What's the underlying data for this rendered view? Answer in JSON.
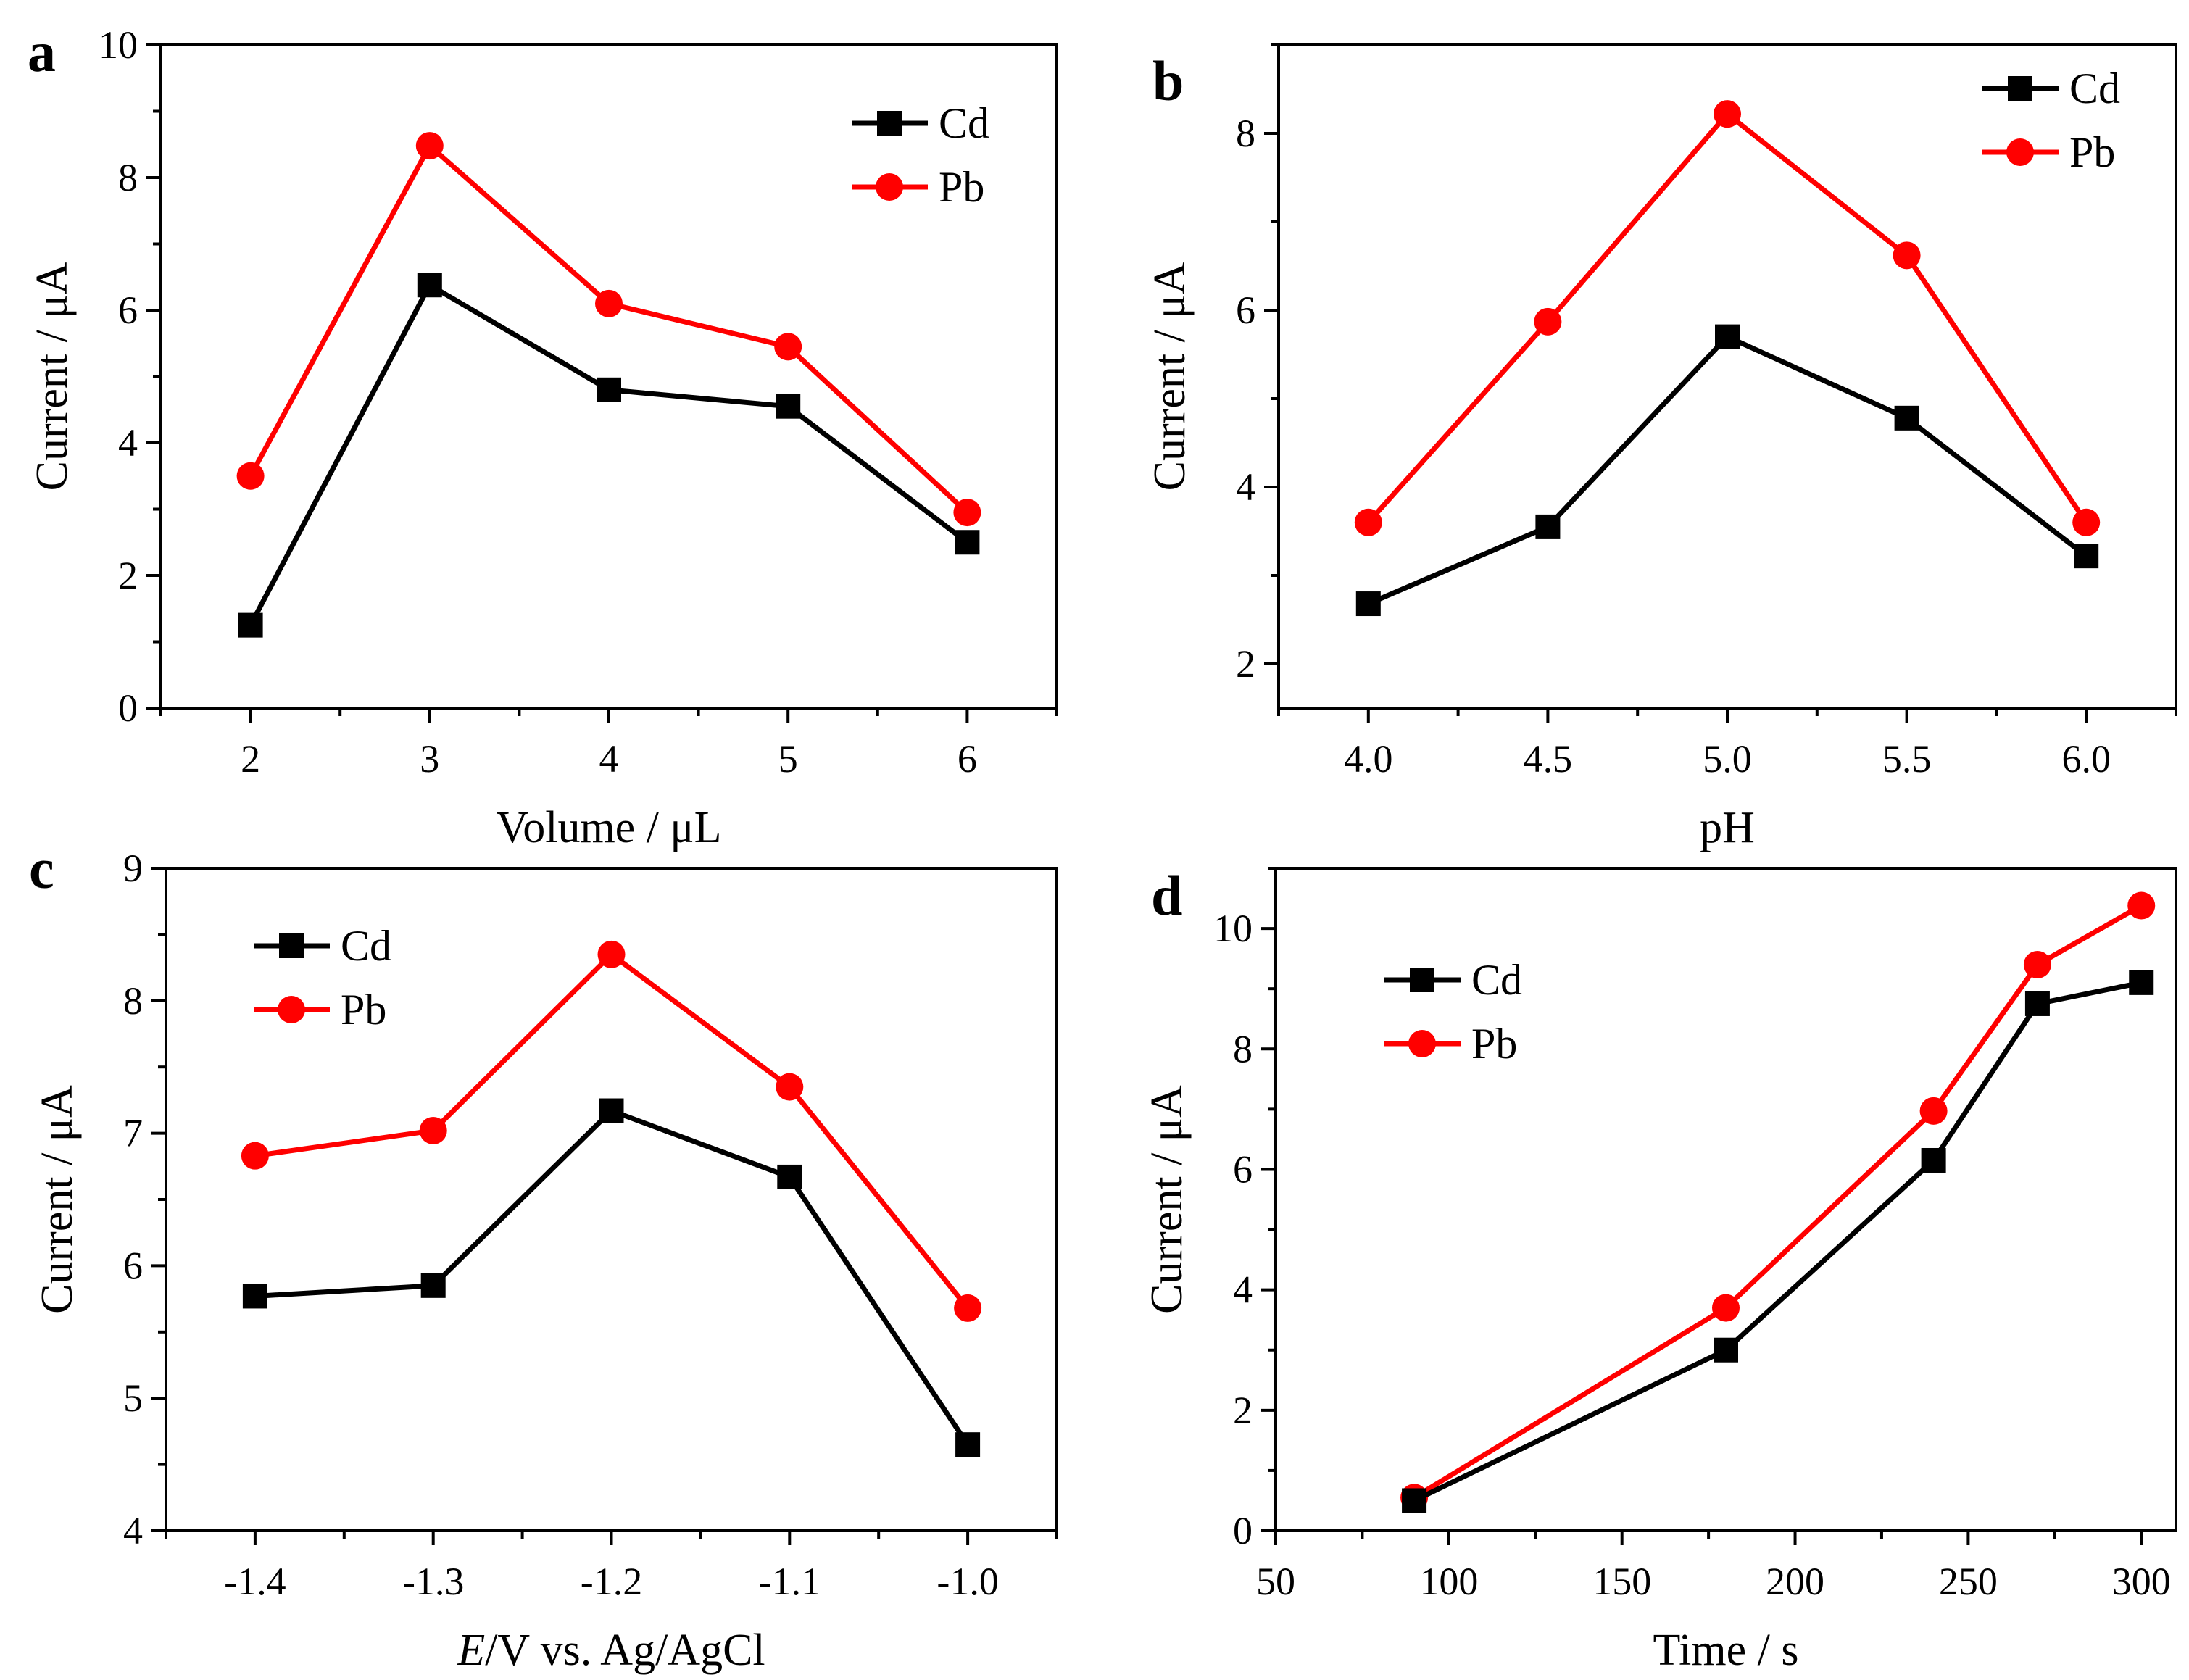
{
  "colors": {
    "cd": "#000000",
    "pb": "#ff0000",
    "axis": "#000000"
  },
  "chart_data": [
    {
      "panel": "a",
      "type": "line",
      "xlabel": "Volume / μL",
      "ylabel": "Current / μA",
      "xlim": [
        1.5,
        6.5
      ],
      "ylim": [
        0,
        10
      ],
      "xticks": [
        2,
        3,
        4,
        5,
        6
      ],
      "xtick_labels": [
        "2",
        "3",
        "4",
        "5",
        "6"
      ],
      "yticks": [
        0,
        2,
        4,
        6,
        8,
        10
      ],
      "ytick_labels": [
        "0",
        "2",
        "4",
        "6",
        "8",
        "10"
      ],
      "legend": "top-right",
      "series": [
        {
          "name": "Cd",
          "marker": "square",
          "x": [
            2,
            3,
            4,
            5,
            6
          ],
          "y": [
            1.25,
            6.38,
            4.8,
            4.55,
            2.5
          ]
        },
        {
          "name": "Pb",
          "marker": "circle",
          "x": [
            2,
            3,
            4,
            5,
            6
          ],
          "y": [
            3.5,
            8.48,
            6.1,
            5.45,
            2.95
          ]
        }
      ]
    },
    {
      "panel": "b",
      "type": "line",
      "xlabel": "pH",
      "ylabel": "Current / μA",
      "xlim": [
        3.75,
        6.25
      ],
      "ylim": [
        1.5,
        9.0
      ],
      "xticks": [
        4.0,
        4.5,
        5.0,
        5.5,
        6.0
      ],
      "xtick_labels": [
        "4.0",
        "4.5",
        "5.0",
        "5.5",
        "6.0"
      ],
      "yticks": [
        2,
        4,
        6,
        8
      ],
      "ytick_labels": [
        "2",
        "4",
        "6",
        "8"
      ],
      "legend": "top-right",
      "series": [
        {
          "name": "Cd",
          "marker": "square",
          "x": [
            4.0,
            4.5,
            5.0,
            5.5,
            6.0
          ],
          "y": [
            2.68,
            3.55,
            5.7,
            4.78,
            3.22
          ]
        },
        {
          "name": "Pb",
          "marker": "circle",
          "x": [
            4.0,
            4.5,
            5.0,
            5.5,
            6.0
          ],
          "y": [
            3.6,
            5.87,
            8.22,
            6.62,
            3.6
          ]
        }
      ]
    },
    {
      "panel": "c",
      "type": "line",
      "xlabel_italic": "E",
      "xlabel": "/V vs. Ag/AgCl",
      "ylabel": "Current / μA",
      "xlim": [
        -1.45,
        -0.95
      ],
      "ylim": [
        4,
        9
      ],
      "xticks": [
        -1.4,
        -1.3,
        -1.2,
        -1.1,
        -1.0
      ],
      "xtick_labels": [
        "-1.4",
        "-1.3",
        "-1.2",
        "-1.1",
        "-1.0"
      ],
      "yticks": [
        4,
        5,
        6,
        7,
        8,
        9
      ],
      "ytick_labels": [
        "4",
        "5",
        "6",
        "7",
        "8",
        "9"
      ],
      "legend": "top-left",
      "series": [
        {
          "name": "Cd",
          "marker": "square",
          "x": [
            -1.4,
            -1.3,
            -1.2,
            -1.1,
            -1.0
          ],
          "y": [
            5.77,
            5.85,
            7.17,
            6.67,
            4.65
          ]
        },
        {
          "name": "Pb",
          "marker": "circle",
          "x": [
            -1.4,
            -1.3,
            -1.2,
            -1.1,
            -1.0
          ],
          "y": [
            6.83,
            7.02,
            8.35,
            7.35,
            5.68
          ]
        }
      ]
    },
    {
      "panel": "d",
      "type": "line",
      "xlabel": "Time / s",
      "ylabel": "Current / μA",
      "xlim": [
        50,
        310
      ],
      "ylim": [
        0,
        11
      ],
      "xticks": [
        50,
        100,
        150,
        200,
        250,
        300
      ],
      "xtick_labels": [
        "50",
        "100",
        "150",
        "200",
        "250",
        "300"
      ],
      "yticks": [
        0,
        2,
        4,
        6,
        8,
        10
      ],
      "ytick_labels": [
        "0",
        "2",
        "4",
        "6",
        "8",
        "10"
      ],
      "legend": "top-left",
      "series": [
        {
          "name": "Cd",
          "marker": "square",
          "x": [
            90,
            180,
            240,
            270,
            300
          ],
          "y": [
            0.5,
            3.0,
            6.15,
            8.75,
            9.1
          ]
        },
        {
          "name": "Pb",
          "marker": "circle",
          "x": [
            90,
            180,
            240,
            270,
            300
          ],
          "y": [
            0.55,
            3.7,
            6.97,
            9.4,
            10.38
          ]
        }
      ]
    }
  ]
}
